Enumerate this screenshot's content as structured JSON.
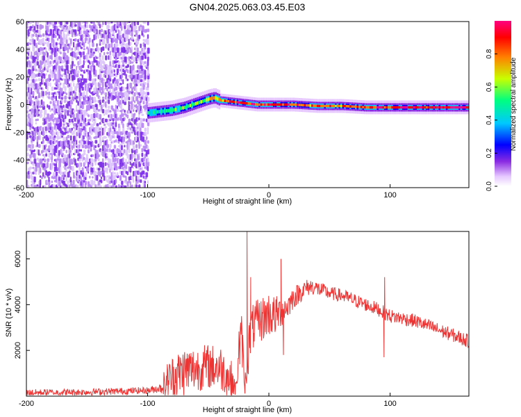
{
  "title": "GN04.2025.063.03.45.E03",
  "chart_data": [
    {
      "type": "heatmap",
      "xlabel": "Height of straight line (km)",
      "ylabel": "Frequency (Hz)",
      "xlim": [
        -200,
        165
      ],
      "ylim": [
        -60,
        60
      ],
      "xticks": [
        -200,
        -100,
        0,
        100
      ],
      "yticks": [
        -60,
        -40,
        -20,
        0,
        20,
        40,
        60
      ],
      "colorbar": {
        "label": "Normalized spectral amplitude",
        "range": [
          0,
          1
        ],
        "ticks": [
          "0.0",
          "0.2",
          "0.4",
          "0.6",
          "0.8"
        ],
        "colors": [
          "#ffffff",
          "#e6c8ff",
          "#8a2be2",
          "#0000ff",
          "#00c8ff",
          "#00ff80",
          "#c8ff00",
          "#ff8000",
          "#ff0000",
          "#ff0080"
        ]
      },
      "noise_region": {
        "x": [
          -200,
          -100
        ],
        "y": [
          -60,
          60
        ]
      },
      "ridge": {
        "x": [
          -100,
          -90,
          -80,
          -70,
          -60,
          -50,
          -45,
          -40,
          -30,
          -20,
          -10,
          0,
          20,
          40,
          60,
          80,
          100,
          120,
          140,
          165
        ],
        "frequency": [
          -6,
          -5,
          -4,
          -2,
          1,
          4,
          5,
          3,
          2,
          1,
          0,
          0,
          0,
          -1,
          -1,
          -2,
          -2,
          -2,
          -2,
          -2
        ],
        "amplitude": [
          0.45,
          0.5,
          0.55,
          0.6,
          0.6,
          0.65,
          0.7,
          0.75,
          0.85,
          0.9,
          0.9,
          0.92,
          0.85,
          0.8,
          0.8,
          0.85,
          0.9,
          0.95,
          1.0,
          1.0
        ]
      }
    },
    {
      "type": "line",
      "xlabel": "Height of straight line (km)",
      "ylabel": "SNR (10 * v/v)",
      "xlim": [
        -200,
        165
      ],
      "ylim": [
        0,
        7200
      ],
      "xticks": [
        -200,
        -100,
        0,
        100
      ],
      "yticks": [
        2000,
        4000,
        6000
      ],
      "color": "#ee3333",
      "envelope": {
        "x": [
          -200,
          -150,
          -100,
          -90,
          -85,
          -80,
          -70,
          -60,
          -50,
          -40,
          -30,
          -27,
          -25,
          -22,
          -20,
          -18,
          -15,
          -12,
          -10,
          -5,
          0,
          5,
          10,
          15,
          20,
          25,
          30,
          35,
          40,
          50,
          60,
          70,
          80,
          90,
          100,
          110,
          120,
          130,
          140,
          150,
          165
        ],
        "baseline": [
          150,
          180,
          250,
          350,
          600,
          800,
          1100,
          1200,
          1300,
          1250,
          600,
          300,
          2000,
          2500,
          300,
          1500,
          2800,
          3100,
          3200,
          3400,
          3600,
          3500,
          3700,
          3900,
          4300,
          4500,
          4700,
          4800,
          4700,
          4500,
          4400,
          4200,
          4000,
          3800,
          3500,
          3400,
          3300,
          3100,
          2900,
          2700,
          2400
        ],
        "jitter": [
          150,
          150,
          150,
          200,
          800,
          1000,
          1100,
          1000,
          1000,
          1000,
          900,
          300,
          1200,
          1200,
          300,
          1000,
          1100,
          1000,
          1000,
          1000,
          1000,
          900,
          700,
          600,
          500,
          450,
          400,
          350,
          350,
          300,
          300,
          300,
          300,
          300,
          300,
          300,
          300,
          300,
          300,
          300,
          300
        ]
      },
      "spikes": [
        {
          "x": -18,
          "y": 7200
        },
        {
          "x": -15,
          "y": 5200
        },
        {
          "x": 10,
          "y": 6000
        },
        {
          "x": 12,
          "y": 1800
        },
        {
          "x": 95,
          "y": 1700
        },
        {
          "x": 95.5,
          "y": 5200
        }
      ]
    }
  ]
}
